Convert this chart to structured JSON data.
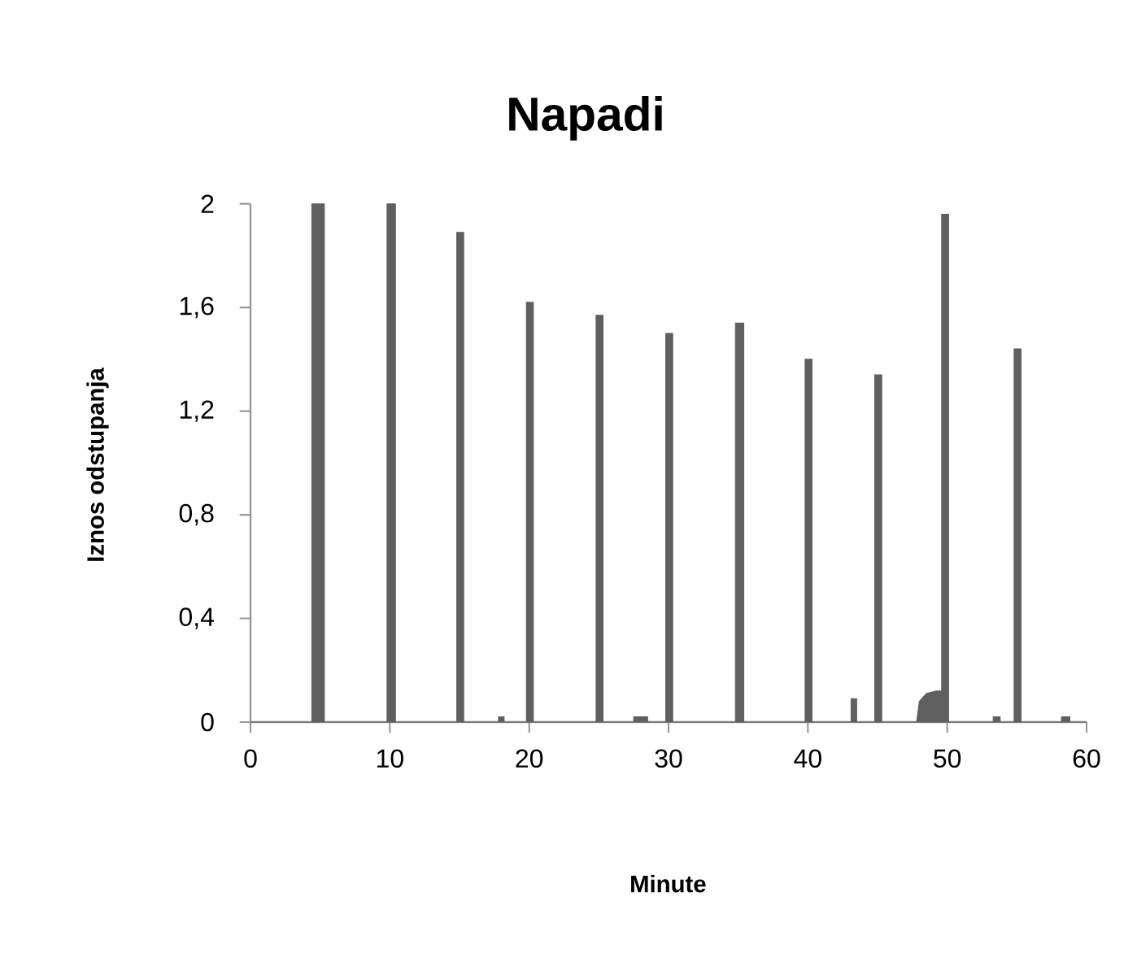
{
  "chart_data": {
    "type": "area",
    "title": "Napadi",
    "xlabel": "Minute",
    "ylabel": "Iznos odstupanja",
    "x": [
      0,
      4.4,
      4.4,
      5.3,
      5.3,
      9.8,
      9.8,
      10.4,
      10.4,
      14.8,
      14.8,
      15.3,
      15.3,
      17.8,
      17.8,
      18.2,
      18.2,
      19.8,
      19.8,
      20.3,
      20.3,
      24.8,
      24.8,
      25.3,
      25.3,
      27.5,
      27.5,
      28.5,
      28.5,
      29.8,
      29.8,
      30.3,
      30.3,
      34.8,
      34.8,
      35.4,
      35.4,
      39.8,
      39.8,
      40.3,
      40.3,
      43.1,
      43.1,
      43.5,
      43.5,
      44.8,
      44.8,
      45.3,
      45.3,
      47.8,
      48,
      48.5,
      49.2,
      49.6,
      49.6,
      50.1,
      50.1,
      53.3,
      53.3,
      53.8,
      53.8,
      54.8,
      54.8,
      55.3,
      55.3,
      58.2,
      58.2,
      58.8,
      58.8,
      60
    ],
    "series": [
      {
        "color": "#5f5f5f",
        "values": [
          0,
          0,
          2.0,
          2.0,
          0,
          0,
          2.0,
          2.0,
          0,
          0,
          1.89,
          1.89,
          0,
          0,
          0.02,
          0.02,
          0,
          0,
          1.62,
          1.62,
          0,
          0,
          1.57,
          1.57,
          0,
          0,
          0.02,
          0.02,
          0,
          0,
          1.5,
          1.5,
          0,
          0,
          1.54,
          1.54,
          0,
          0,
          1.4,
          1.4,
          0,
          0,
          0.09,
          0.09,
          0,
          0,
          1.34,
          1.34,
          0,
          0,
          0.08,
          0.11,
          0.12,
          0.12,
          1.96,
          1.96,
          0,
          0,
          0.02,
          0.02,
          0,
          0,
          1.44,
          1.44,
          0,
          0,
          0.02,
          0.02,
          0,
          0
        ]
      }
    ],
    "xlim": [
      0,
      60
    ],
    "xticks": [
      0,
      10,
      20,
      30,
      40,
      50,
      60
    ],
    "ylim": [
      0,
      2
    ],
    "yticks": [
      0,
      {
        "value": 0.4,
        "label": "0,4"
      },
      {
        "value": 0.8,
        "label": "0,8"
      },
      {
        "value": 1.2,
        "label": "1,2"
      },
      {
        "value": 1.6,
        "label": "1,6"
      },
      2
    ]
  }
}
